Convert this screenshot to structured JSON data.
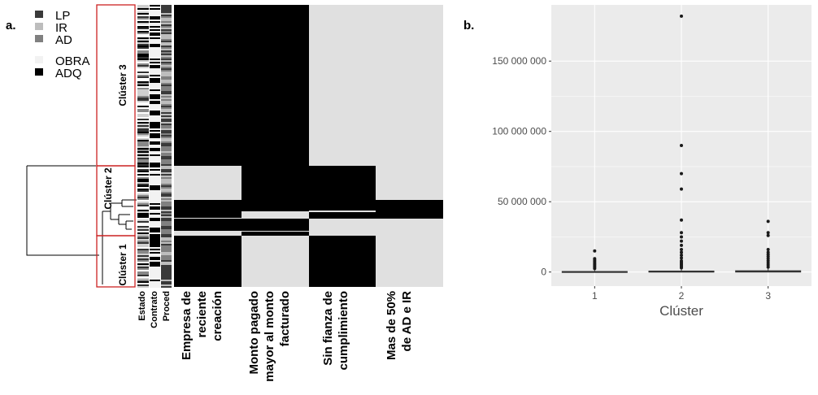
{
  "panel_a": {
    "label": "a.",
    "legend": {
      "procedures": [
        {
          "code": "LP",
          "color": "#3a3a3a"
        },
        {
          "code": "IR",
          "color": "#bdbdbd"
        },
        {
          "code": "AD",
          "color": "#808080"
        }
      ],
      "contracts": [
        {
          "code": "OBRA",
          "color": "#f2f2f2"
        },
        {
          "code": "ADQ",
          "color": "#000000"
        }
      ]
    },
    "clusters": [
      "Clúster 3",
      "Clúster 2",
      "Clúster 1"
    ],
    "annotation_columns": [
      "Estado",
      "Contrato",
      "Proced"
    ],
    "heatmap_colors": {
      "present": "#000000",
      "absent": "#e0e0e0"
    },
    "heatmap_columns": [
      {
        "lines": [
          "Empresa de",
          "reciente",
          "creación"
        ]
      },
      {
        "lines": [
          "Monto pagado",
          "mayor al monto",
          "facturado"
        ]
      },
      {
        "lines": [
          "Sin fianza de",
          "cumplimiento"
        ]
      },
      {
        "lines": [
          "Mas de 50%",
          "de AD e IR"
        ]
      }
    ]
  },
  "panel_b": {
    "label": "b."
  },
  "chart_data": {
    "type": "boxplot",
    "xlabel": "Clúster",
    "ylabel": "",
    "categories": [
      "1",
      "2",
      "3"
    ],
    "ylim": [
      -10000000,
      190000000
    ],
    "yticks": [
      0,
      50000000,
      100000000,
      150000000
    ],
    "ytick_labels": [
      "0",
      "50 000 000",
      "100 000 000",
      "150 000 000"
    ],
    "boxes": [
      {
        "cluster": "1",
        "q1": 0,
        "median": 100000,
        "q3": 400000,
        "whisker_high": 1500000,
        "outliers": [
          2500000,
          3500000,
          4500000,
          5500000,
          6500000,
          7500000,
          8500000,
          9500000,
          15000000
        ]
      },
      {
        "cluster": "2",
        "q1": 0,
        "median": 200000,
        "q3": 700000,
        "whisker_high": 2000000,
        "outliers": [
          3000000,
          4000000,
          5000000,
          6000000,
          7000000,
          8000000,
          10000000,
          12000000,
          14000000,
          16000000,
          19000000,
          22000000,
          25000000,
          28000000,
          37000000,
          59000000,
          70000000,
          90000000,
          182000000
        ]
      },
      {
        "cluster": "3",
        "q1": 0,
        "median": 300000,
        "q3": 900000,
        "whisker_high": 2500000,
        "outliers": [
          3500000,
          5000000,
          6500000,
          8000000,
          9500000,
          11000000,
          12500000,
          14000000,
          16000000,
          26000000,
          28000000,
          36000000
        ]
      }
    ],
    "colors": {
      "panel": "#ebebeb",
      "grid": "#ffffff",
      "box": "#333333",
      "outlier": "#1a1a1a"
    }
  }
}
